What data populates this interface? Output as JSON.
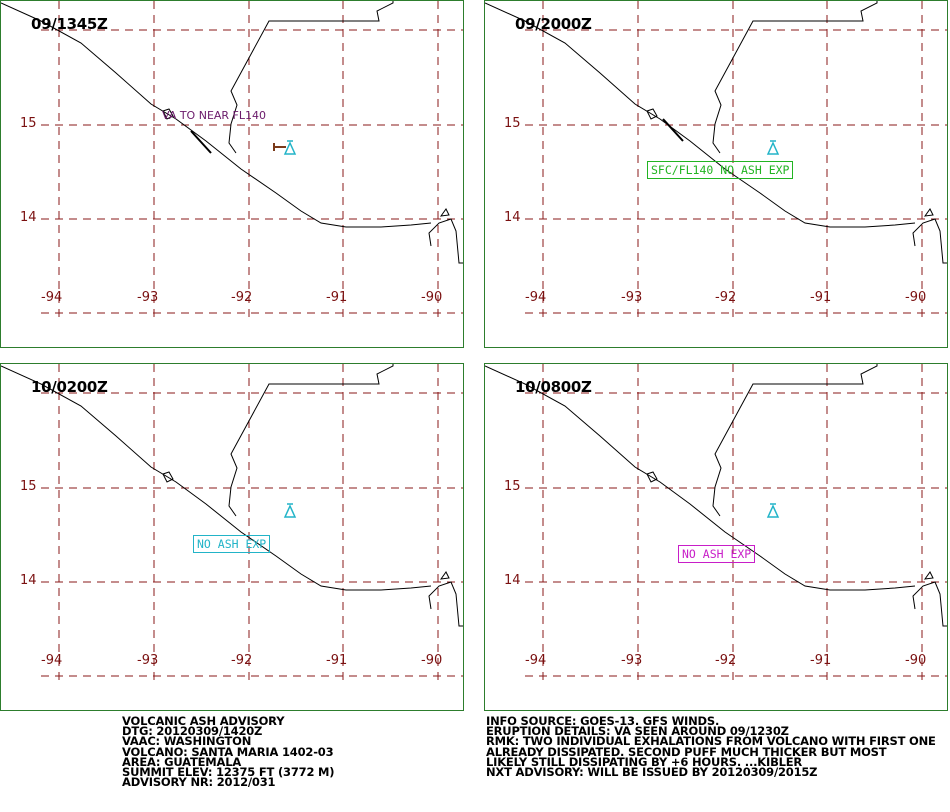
{
  "panels": [
    {
      "time": "09/1345Z",
      "label": "VA TO NEAR FL140",
      "label_style": "plain",
      "label_color": "#6a1a6a"
    },
    {
      "time": "09/2000Z",
      "label": "SFC/FL140  NO ASH EXP",
      "label_style": "box",
      "label_color": "#22b422"
    },
    {
      "time": "10/0200Z",
      "label": "NO ASH EXP",
      "label_style": "box",
      "label_color": "#22b4c8"
    },
    {
      "time": "10/0800Z",
      "label": "NO ASH EXP",
      "label_style": "box",
      "label_color": "#c81ec8"
    }
  ],
  "lat_labels": [
    "15",
    "14"
  ],
  "lon_labels": [
    "-94",
    "-93",
    "-92",
    "-91",
    "-90"
  ],
  "advisory_left": {
    "l1": "VOLCANIC ASH ADVISORY",
    "l2": "DTG: 20120309/1420Z",
    "l3": "VAAC: WASHINGTON",
    "l4": "VOLCANO: SANTA MARIA 1402-03",
    "l5": "AREA: GUATEMALA",
    "l6": "SUMMIT ELEV: 12375 FT (3772 M)",
    "l7": "ADVISORY NR: 2012/031"
  },
  "advisory_right": {
    "l1": "INFO SOURCE: GOES-13. GFS WINDS.",
    "l2": "ERUPTION DETAILS: VA SEEN AROUND 09/1230Z",
    "l3": "RMK: TWO INDIVIDUAL EXHALATIONS FROM VOLCANO WITH FIRST ONE",
    "l4": "ALREADY DISSIPATED. SECOND PUFF MUCH THICKER BUT MOST",
    "l5": "LIKELY STILL DISSIPATING BY +6 HOURS. ...KIBLER",
    "l6": "NXT ADVISORY: WILL BE ISSUED BY 20120309/2015Z"
  },
  "colors": {
    "frame": "#2d7d2d",
    "grid": "#8a1a1a",
    "coast": "#000000",
    "volcano_symbol": "#22b4c8",
    "ash_marker": "#7a3a1a"
  },
  "icons": [
    "volcano-icon",
    "ash-plume-marker"
  ]
}
